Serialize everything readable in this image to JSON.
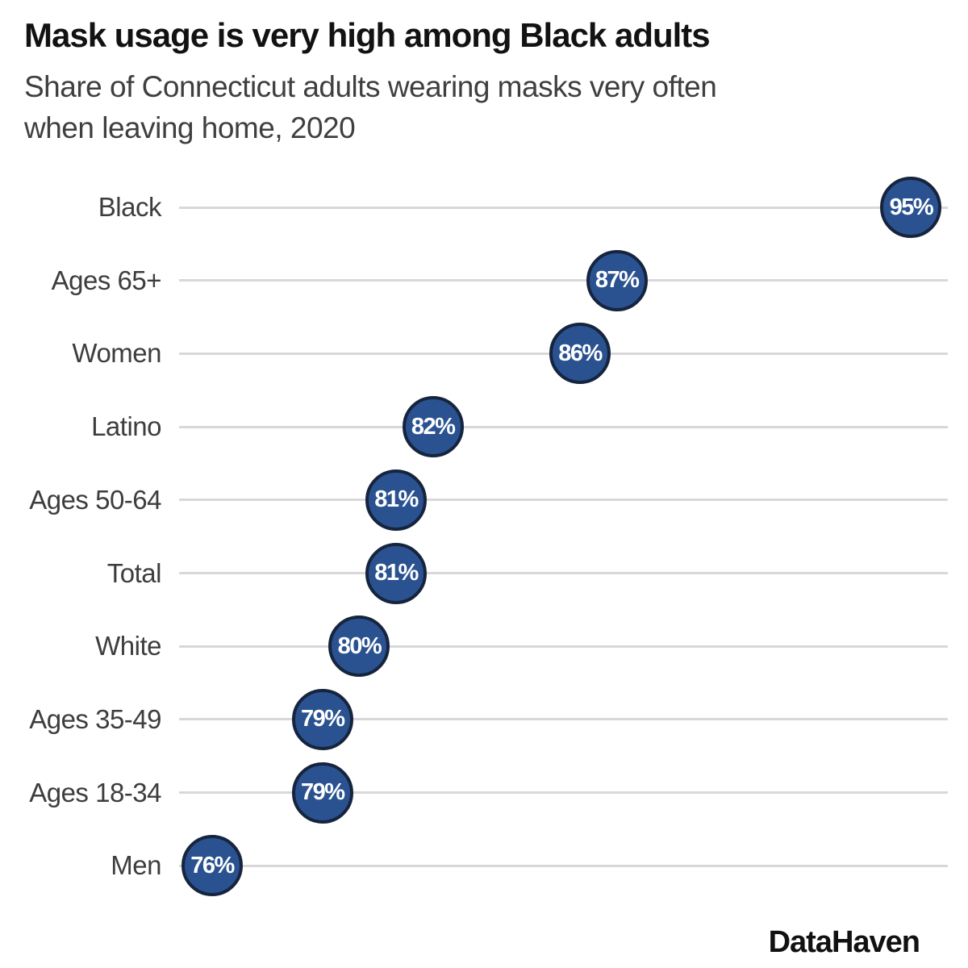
{
  "header": {
    "title": "Mask usage is very high among Black adults",
    "subtitle": "Share of Connecticut adults wearing masks very often when leaving home, 2020",
    "subtitle_lines": [
      "Share of Connecticut adults wearing masks very often",
      "when leaving home, 2020"
    ]
  },
  "footer": {
    "brand": "DataHaven"
  },
  "colors": {
    "dot_fill": "#2a5290",
    "dot_border": "#16243e",
    "dot_text": "#ffffff",
    "gridline": "#d8d8d8",
    "title": "#121212",
    "subtitle": "#3f3f3f",
    "category_label": "#3d3d3d"
  },
  "chart_data": {
    "type": "scatter",
    "subtype": "dot-plot",
    "title": "Mask usage is very high among Black adults",
    "subtitle": "Share of Connecticut adults wearing masks very often when leaving home, 2020",
    "categories": [
      "Black",
      "Ages 65+",
      "Women",
      "Latino",
      "Ages 50-64",
      "Total",
      "White",
      "Ages 35-49",
      "Ages 18-34",
      "Men"
    ],
    "values": [
      95,
      87,
      86,
      82,
      81,
      81,
      80,
      79,
      79,
      76
    ],
    "value_labels": [
      "95%",
      "87%",
      "86%",
      "82%",
      "81%",
      "81%",
      "80%",
      "79%",
      "79%",
      "76%"
    ],
    "xlabel": "",
    "ylabel": "",
    "xlim": [
      75.1,
      96.0
    ],
    "unit": "%",
    "grid": "horizontal-row-lines",
    "legend": "none",
    "source": "DataHaven"
  }
}
